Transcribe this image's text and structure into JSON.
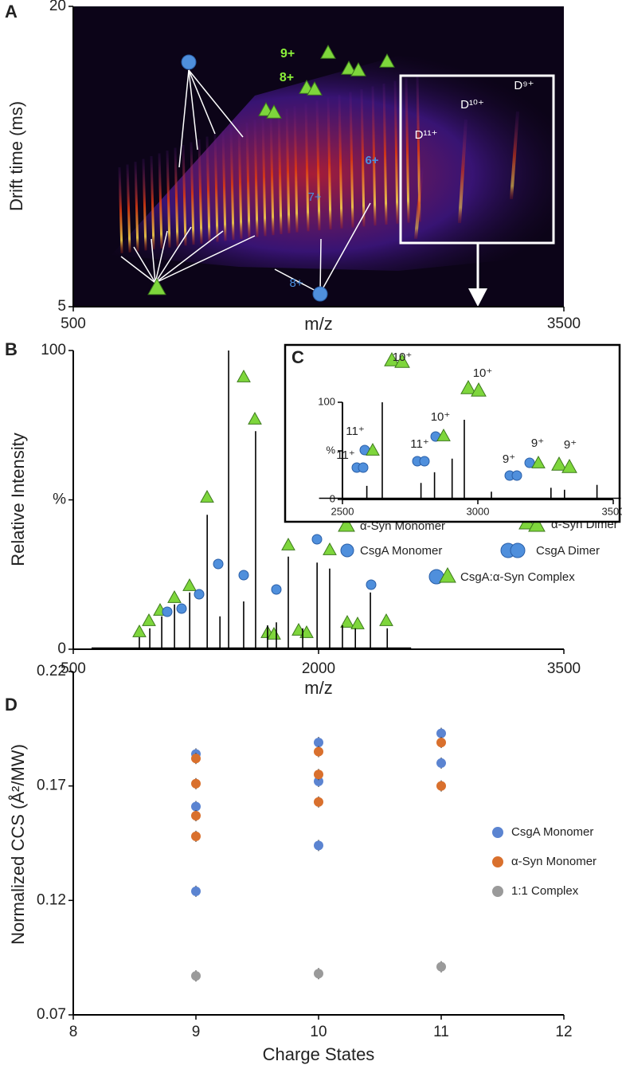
{
  "chart_data": [
    {
      "panel": "A",
      "type": "heatmap",
      "x_label": "m/z",
      "y_label": "Drift time (ms)",
      "xlim": [
        500,
        3500
      ],
      "xticks": [
        500,
        3500
      ],
      "ylim": [
        5,
        20
      ],
      "yticks": [
        5,
        20
      ],
      "annotations": [
        "9+",
        "8+",
        "7+",
        "6+",
        "8+",
        "D¹¹⁺",
        "D¹⁰⁺",
        "D⁹⁺"
      ]
    },
    {
      "panel": "B",
      "type": "spectrum",
      "x_label": "m/z",
      "y_label": "Relative Intensity",
      "xlim": [
        500,
        3500
      ],
      "xticks": [
        500,
        2000,
        3500
      ],
      "ylim": [
        0,
        100
      ],
      "yticks": [
        0,
        {
          "value": 50,
          "label": "%"
        },
        100
      ],
      "color": "#000000",
      "x": [
        904,
        968,
        1041,
        1119,
        1212,
        1319,
        1397,
        1450,
        1542,
        1615,
        1688,
        1742,
        1815,
        1903,
        1991,
        2068,
        2146,
        2225,
        2317,
        2420
      ],
      "values": [
        4,
        7,
        11,
        15,
        19,
        45,
        11,
        100,
        16,
        73,
        8,
        9,
        31,
        7,
        29,
        27,
        8,
        7,
        19,
        7
      ],
      "legend": [
        "α-Syn Monomer",
        "α-Syn Dimer",
        "CsgA Monomer",
        "CsgA Dimer",
        "CsgA:α-Syn Complex"
      ]
    },
    {
      "panel": "C",
      "type": "spectrum",
      "xlim": [
        2500,
        3500
      ],
      "xticks": [
        2500,
        3000,
        3500
      ],
      "ylim": [
        0,
        100
      ],
      "yticks": [
        0,
        {
          "value": 50,
          "label": "%"
        },
        100
      ],
      "color": "#000000",
      "x": [
        2590,
        2647,
        2790,
        2840,
        2905,
        2950,
        3050,
        3270,
        3320,
        3440
      ],
      "values": [
        14,
        100,
        17,
        28,
        42,
        82,
        8,
        12,
        10,
        15
      ],
      "annotations": [
        "11⁺",
        "11⁺",
        "11⁺",
        "10⁺",
        "10⁺",
        "10⁺",
        "9⁺",
        "9⁺",
        "9⁺"
      ]
    },
    {
      "panel": "D",
      "type": "scatter",
      "x_label": "Charge States",
      "y_label": "Normalized CCS (Å²/MW)",
      "xlim": [
        8,
        12
      ],
      "xticks": [
        8,
        9,
        10,
        11,
        12
      ],
      "ylim": [
        0.07,
        0.22
      ],
      "yticks": [
        0.07,
        0.12,
        0.17,
        0.22
      ],
      "series": [
        {
          "name": "CsgA Monomer",
          "color": "#5b84d1",
          "x": [
            9,
            9,
            9,
            10,
            10,
            10,
            11,
            11
          ],
          "values": [
            0.184,
            0.161,
            0.124,
            0.189,
            0.172,
            0.144,
            0.193,
            0.18
          ]
        },
        {
          "name": "α-Syn Monomer",
          "color": "#d9702d",
          "x": [
            9,
            9,
            9,
            9,
            10,
            10,
            10,
            11,
            11
          ],
          "values": [
            0.182,
            0.171,
            0.157,
            0.148,
            0.185,
            0.175,
            0.163,
            0.189,
            0.17
          ]
        },
        {
          "name": "1:1 Complex",
          "color": "#9a9a9a",
          "x": [
            9,
            10,
            11
          ],
          "values": [
            0.087,
            0.088,
            0.091
          ]
        }
      ]
    }
  ]
}
